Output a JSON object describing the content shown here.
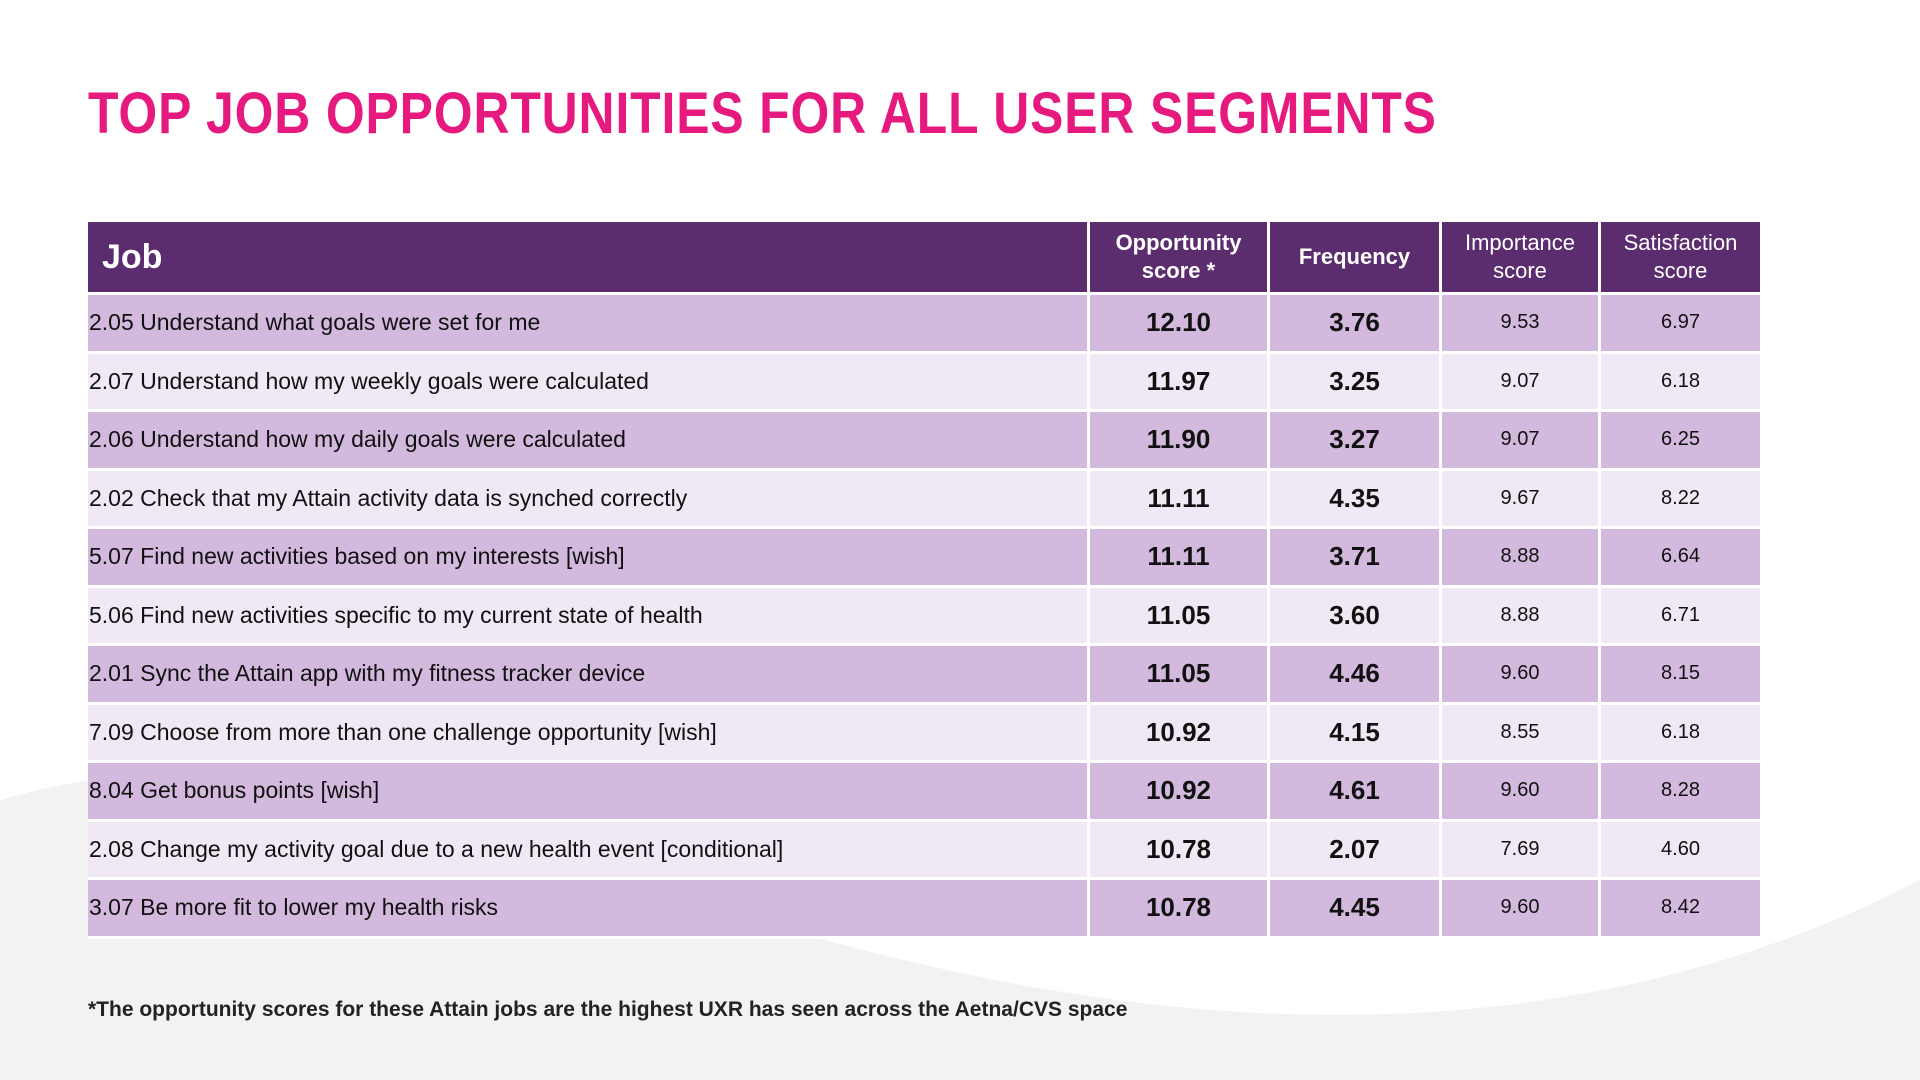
{
  "title": "TOP JOB OPPORTUNITIES FOR ALL USER SEGMENTS",
  "colors": {
    "title": "#e5197e",
    "header_bg": "#5c2d6e",
    "row_dark": "#d2b9dd",
    "row_light": "#f0e8f4",
    "background_wave": "#f2f2f2"
  },
  "table": {
    "headers": {
      "job": "Job",
      "opportunity_line1": "Opportunity",
      "opportunity_line2": "score *",
      "frequency": "Frequency",
      "importance_line1": "Importance",
      "importance_line2": "score",
      "satisfaction_line1": "Satisfaction",
      "satisfaction_line2": "score"
    },
    "rows": [
      {
        "job": "2.05 Understand what goals were set for me",
        "opportunity": "12.10",
        "frequency": "3.76",
        "importance": "9.53",
        "satisfaction": "6.97"
      },
      {
        "job": "2.07 Understand how my weekly goals were calculated",
        "opportunity": "11.97",
        "frequency": "3.25",
        "importance": "9.07",
        "satisfaction": "6.18"
      },
      {
        "job": "2.06 Understand how my daily goals were calculated",
        "opportunity": "11.90",
        "frequency": "3.27",
        "importance": "9.07",
        "satisfaction": "6.25"
      },
      {
        "job": "2.02 Check that my Attain activity data is synched correctly",
        "opportunity": "11.11",
        "frequency": "4.35",
        "importance": "9.67",
        "satisfaction": "8.22"
      },
      {
        "job": "5.07 Find new activities based on my interests [wish]",
        "opportunity": "11.11",
        "frequency": "3.71",
        "importance": "8.88",
        "satisfaction": "6.64"
      },
      {
        "job": "5.06 Find new activities specific to my current state of health",
        "opportunity": "11.05",
        "frequency": "3.60",
        "importance": "8.88",
        "satisfaction": "6.71"
      },
      {
        "job": "2.01 Sync the Attain app with my fitness tracker device",
        "opportunity": "11.05",
        "frequency": "4.46",
        "importance": "9.60",
        "satisfaction": "8.15"
      },
      {
        "job": "7.09 Choose from more than one challenge opportunity [wish]",
        "opportunity": "10.92",
        "frequency": "4.15",
        "importance": "8.55",
        "satisfaction": "6.18"
      },
      {
        "job": "8.04 Get bonus points [wish]",
        "opportunity": "10.92",
        "frequency": "4.61",
        "importance": "9.60",
        "satisfaction": "8.28"
      },
      {
        "job": "2.08 Change my activity goal due to a new health event [conditional]",
        "opportunity": "10.78",
        "frequency": "2.07",
        "importance": "7.69",
        "satisfaction": "4.60"
      },
      {
        "job": "3.07 Be more fit to lower my health risks",
        "opportunity": "10.78",
        "frequency": "4.45",
        "importance": "9.60",
        "satisfaction": "8.42"
      }
    ]
  },
  "footnote": "*The opportunity scores for these Attain jobs are the highest UXR has seen across the Aetna/CVS space"
}
